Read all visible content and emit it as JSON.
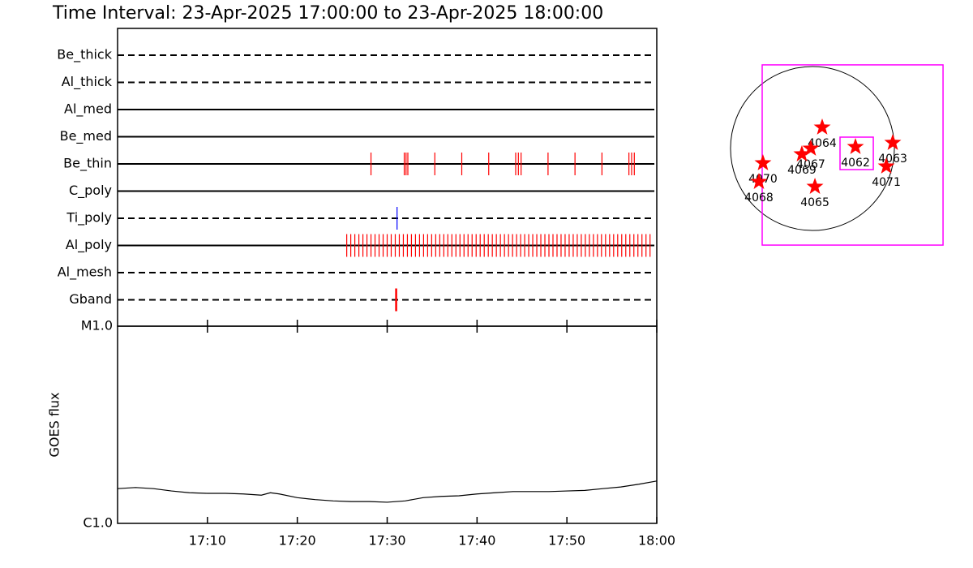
{
  "chart_data": [
    {
      "type": "timeline",
      "title": "Time Interval: 23-Apr-2025 17:00:00 to 23-Apr-2025 18:00:00",
      "categories": [
        "Be_thick",
        "Al_thick",
        "Al_med",
        "Be_med",
        "Be_thin",
        "C_poly",
        "Ti_poly",
        "Al_poly",
        "Al_mesh",
        "Gband"
      ],
      "line_styles": [
        "dashed",
        "dashed",
        "solid",
        "solid",
        "solid",
        "solid",
        "dashed",
        "solid",
        "dashed",
        "dashed"
      ],
      "event_colors": [
        "#ff0000",
        "#ff0000",
        "#ff0000",
        "#ff0000",
        "#ff0000",
        "#ff0000",
        "#0000ff",
        "#ff0000",
        "#ff0000",
        "#ff0000"
      ],
      "events": [
        [],
        [],
        [],
        [],
        [
          28.2,
          31.9,
          32.1,
          32.3,
          35.3,
          38.3,
          41.3,
          44.3,
          44.6,
          44.9,
          47.9,
          50.9,
          53.9,
          56.9,
          57.2,
          57.5
        ],
        [],
        [
          31.1
        ],
        [
          25.5,
          25.95,
          26.4,
          26.85,
          27.3,
          27.75,
          28.2,
          28.65,
          29.1,
          29.55,
          30.0,
          30.45,
          30.9,
          31.35,
          31.8,
          32.25,
          32.7,
          33.15,
          33.6,
          34.05,
          34.5,
          34.95,
          35.4,
          35.85,
          36.3,
          36.75,
          37.2,
          37.65,
          38.1,
          38.55,
          39.0,
          39.45,
          39.9,
          40.35,
          40.8,
          41.25,
          41.7,
          42.15,
          42.6,
          43.05,
          43.5,
          43.95,
          44.4,
          44.85,
          45.3,
          45.75,
          46.2,
          46.65,
          47.1,
          47.55,
          48.0,
          48.45,
          48.9,
          49.35,
          49.8,
          50.25,
          50.7,
          51.15,
          51.6,
          52.05,
          52.5,
          52.95,
          53.4,
          53.85,
          54.3,
          54.75,
          55.2,
          55.65,
          56.1,
          56.55,
          57.0,
          57.45,
          57.9,
          58.35,
          58.8,
          59.25
        ],
        [],
        [
          31.0
        ]
      ],
      "xlim": [
        0,
        60
      ]
    },
    {
      "type": "line",
      "ylabel": "GOES flux",
      "x": [
        0,
        2,
        4,
        6,
        8,
        10,
        12,
        14,
        16,
        17,
        18,
        20,
        22,
        24,
        26,
        28,
        30,
        32,
        34,
        36,
        38,
        40,
        42,
        44,
        46,
        48,
        50,
        52,
        54,
        56,
        58,
        60
      ],
      "values": [
        1.5e-06,
        1.52e-06,
        1.5e-06,
        1.46e-06,
        1.43e-06,
        1.42e-06,
        1.42e-06,
        1.41e-06,
        1.39e-06,
        1.43e-06,
        1.41e-06,
        1.35e-06,
        1.32e-06,
        1.3e-06,
        1.29e-06,
        1.29e-06,
        1.28e-06,
        1.3e-06,
        1.35e-06,
        1.37e-06,
        1.38e-06,
        1.41e-06,
        1.43e-06,
        1.45e-06,
        1.45e-06,
        1.45e-06,
        1.46e-06,
        1.47e-06,
        1.5e-06,
        1.53e-06,
        1.58e-06,
        1.64e-06
      ],
      "color": "#000000",
      "log_y": true,
      "xlim": [
        0,
        60
      ],
      "xticks": [
        {
          "value": 10,
          "label": "17:10"
        },
        {
          "value": 20,
          "label": "17:20"
        },
        {
          "value": 30,
          "label": "17:30"
        },
        {
          "value": 40,
          "label": "17:40"
        },
        {
          "value": 50,
          "label": "17:50"
        },
        {
          "value": 60,
          "label": "18:00"
        }
      ],
      "ylim": [
        1e-06,
        1e-05
      ],
      "yticks": [
        {
          "value": 1e-06,
          "label": "C1.0"
        },
        {
          "value": 1e-05,
          "label": "M1.0"
        }
      ]
    },
    {
      "type": "map",
      "disk_radius": 960,
      "labels": [
        "4064",
        "4067",
        "4069",
        "4062",
        "4063",
        "4071",
        "4070",
        "4068",
        "4065"
      ],
      "x": [
        114,
        -19,
        -124,
        504,
        941,
        865,
        -580,
        -627,
        29
      ],
      "y": [
        247,
        0,
        -67,
        19,
        67,
        -209,
        -171,
        -390,
        -447
      ],
      "color": "#ff0000",
      "boxes": [
        {
          "x": [
            -589,
            1530
          ],
          "y": [
            -1131,
            979
          ]
        },
        {
          "x": [
            323,
            713
          ],
          "y": [
            -247,
            133
          ]
        }
      ],
      "box_color": "#ff00ff"
    }
  ]
}
